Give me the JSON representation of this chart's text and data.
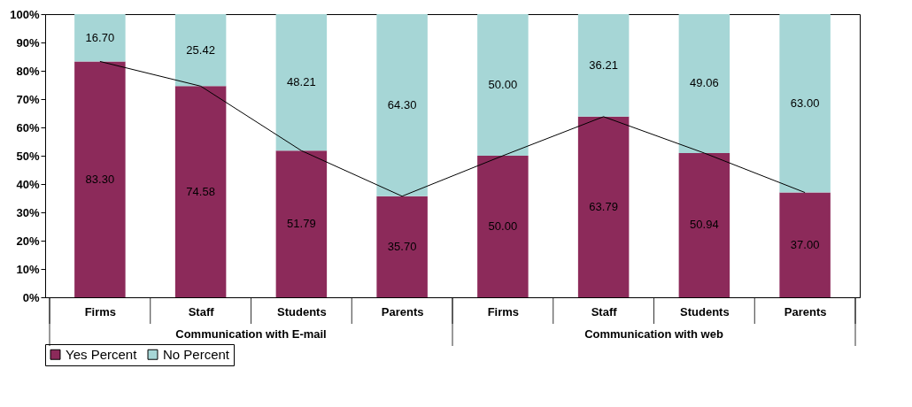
{
  "chart_data": {
    "type": "bar",
    "stacked": true,
    "categories": [
      "Firms",
      "Staff",
      "Students",
      "Parents",
      "Firms",
      "Staff",
      "Students",
      "Parents"
    ],
    "series": [
      {
        "name": "Yes Percent",
        "color": "#8c2a5a",
        "values": [
          83.3,
          74.58,
          51.79,
          35.7,
          50.0,
          63.79,
          50.94,
          37.0
        ],
        "value_labels": [
          "83.30",
          "74.58",
          "51.79",
          "35.70",
          "50.00",
          "63.79",
          "50.94",
          "37.00"
        ]
      },
      {
        "name": "No Percent",
        "color": "#a6d6d6",
        "values": [
          16.7,
          25.42,
          48.21,
          64.3,
          50.0,
          36.21,
          49.06,
          63.0
        ],
        "value_labels": [
          "16.70",
          "25.42",
          "48.21",
          "64.30",
          "50.00",
          "36.21",
          "49.06",
          "63.00"
        ]
      },
      {
        "type": "line",
        "color": "#000000",
        "values": [
          83.3,
          74.58,
          51.79,
          35.7,
          50.0,
          63.79,
          50.94,
          37.0
        ]
      }
    ],
    "ylim": [
      0,
      100
    ],
    "yticks": [
      {
        "value": 0,
        "label": "0%"
      },
      {
        "value": 10,
        "label": "10%"
      },
      {
        "value": 20,
        "label": "20%"
      },
      {
        "value": 30,
        "label": "30%"
      },
      {
        "value": 40,
        "label": "40%"
      },
      {
        "value": 50,
        "label": "50%"
      },
      {
        "value": 60,
        "label": "60%"
      },
      {
        "value": 70,
        "label": "70%"
      },
      {
        "value": 80,
        "label": "80%"
      },
      {
        "value": 90,
        "label": "90%"
      },
      {
        "value": 100,
        "label": "100%"
      }
    ],
    "annotations": [
      "Communication with E-mail",
      "Communication with web"
    ],
    "legend": "bottom",
    "grid": false
  }
}
